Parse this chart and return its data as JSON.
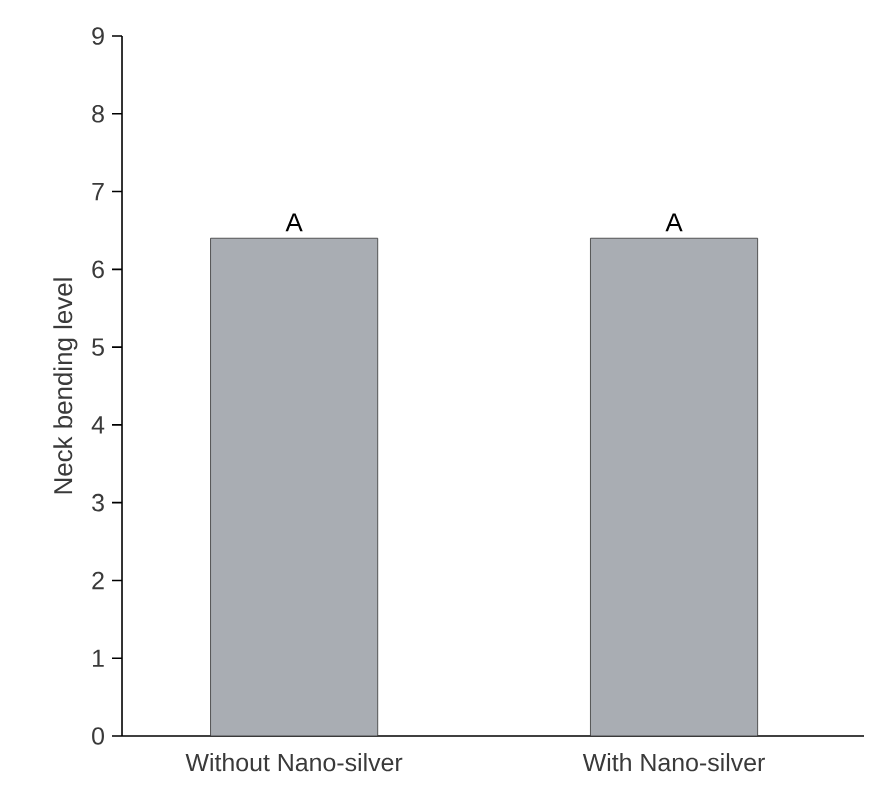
{
  "chart_data": {
    "type": "bar",
    "ylabel": "Neck bending level",
    "categories": [
      "Without Nano-silver",
      "With Nano-silver"
    ],
    "values": [
      6.4,
      6.4
    ],
    "color": "#a9adb3",
    "ylim": [
      0,
      9
    ],
    "yticks": [
      0,
      1,
      2,
      3,
      4,
      5,
      6,
      7,
      8,
      9
    ],
    "annotations": [
      {
        "text": "A",
        "x": "Without Nano-silver",
        "y": 6.4
      },
      {
        "text": "A",
        "x": "With Nano-silver",
        "y": 6.4
      }
    ]
  }
}
